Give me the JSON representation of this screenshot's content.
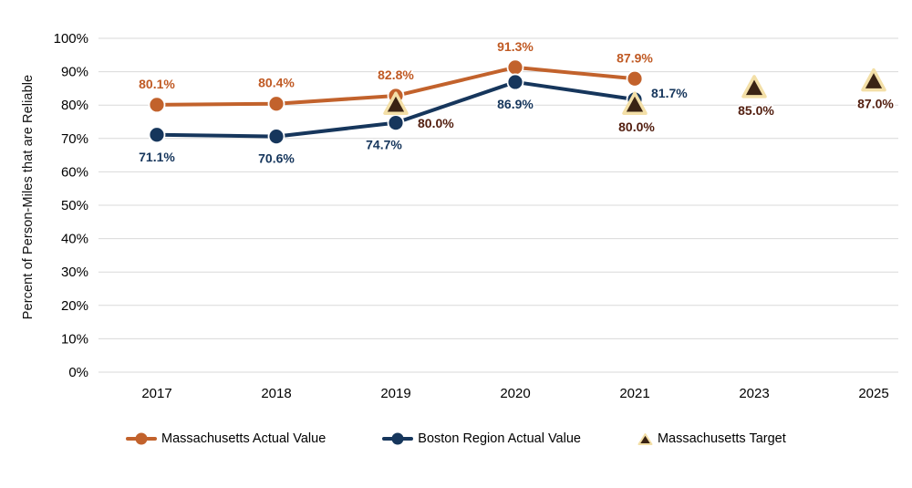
{
  "chart_data": {
    "type": "line",
    "title": "",
    "ylabel": "Percent of Person-Miles that are Reliable",
    "xlabel": "",
    "ylim": [
      0,
      100
    ],
    "grid": true,
    "legend_position": "bottom",
    "gridline_color": "#D9D9D9",
    "axis_text_color": "#000000",
    "yticks": [
      {
        "value": 0,
        "label": "0%"
      },
      {
        "value": 10,
        "label": "10%"
      },
      {
        "value": 20,
        "label": "20%"
      },
      {
        "value": 30,
        "label": "30%"
      },
      {
        "value": 40,
        "label": "40%"
      },
      {
        "value": 50,
        "label": "50%"
      },
      {
        "value": 60,
        "label": "60%"
      },
      {
        "value": 70,
        "label": "70%"
      },
      {
        "value": 80,
        "label": "80%"
      },
      {
        "value": 90,
        "label": "90%"
      },
      {
        "value": 100,
        "label": "100%"
      }
    ],
    "categories": [
      "2017",
      "2018",
      "2019",
      "2020",
      "2021",
      "2023",
      "2025"
    ],
    "series": [
      {
        "name": "Massachusetts Actual Value",
        "marker": "circle",
        "has_line": true,
        "color": "#C2622C",
        "label_color": "#C05A24",
        "values": [
          80.1,
          80.4,
          82.8,
          91.3,
          87.9,
          null,
          null
        ],
        "point_labels": [
          "80.1%",
          "80.4%",
          "82.8%",
          "91.3%",
          "87.9%",
          null,
          null
        ],
        "label_placement": [
          "above",
          "above",
          "above",
          "above",
          "above",
          null,
          null
        ]
      },
      {
        "name": "Boston Region Actual Value",
        "marker": "circle",
        "has_line": true,
        "color": "#16365C",
        "label_color": "#16365C",
        "values": [
          71.1,
          70.6,
          74.7,
          86.9,
          81.7,
          null,
          null
        ],
        "point_labels": [
          "71.1%",
          "70.6%",
          "74.7%",
          "86.9%",
          "81.7%",
          null,
          null
        ],
        "label_placement": [
          "below",
          "below",
          "below-left",
          "below",
          "right",
          null,
          null
        ]
      },
      {
        "name": "Massachusetts Target",
        "marker": "triangle",
        "has_line": false,
        "color": "#3A2314",
        "marker_stroke": "#F3DFA7",
        "label_color": "#521E0F",
        "values": [
          null,
          null,
          80.0,
          null,
          80.0,
          85.0,
          87.0
        ],
        "point_labels": [
          null,
          null,
          "80.0%",
          null,
          "80.0%",
          "85.0%",
          "87.0%"
        ],
        "label_placement": [
          null,
          null,
          "right-below",
          null,
          "below-far",
          "below-far",
          "below-far"
        ]
      }
    ]
  }
}
